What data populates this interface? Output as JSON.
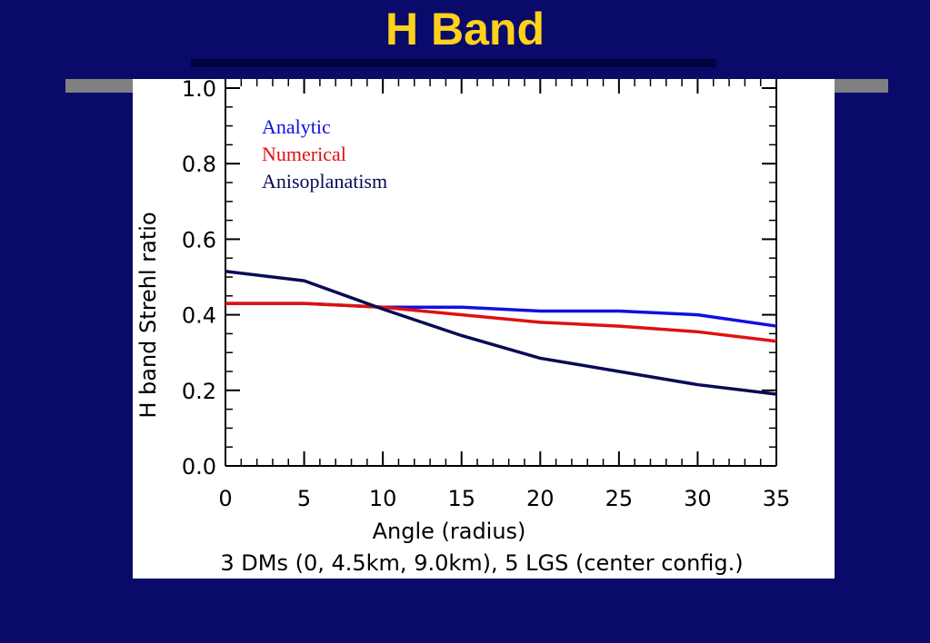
{
  "slide": {
    "title": "H Band"
  },
  "chart_data": {
    "type": "line",
    "xlabel": "Angle (radius)",
    "ylabel": "H band Strehl ratio",
    "subtitle": "3 DMs (0, 4.5km, 9.0km), 5 LGS (center config.)",
    "xlim": [
      0,
      35
    ],
    "ylim": [
      0,
      1.0
    ],
    "xticks": [
      0,
      5,
      10,
      15,
      20,
      25,
      30,
      35
    ],
    "xtick_labels": [
      "0",
      "5",
      "10",
      "15",
      "20",
      "25",
      "30",
      "35"
    ],
    "yticks": [
      0.0,
      0.2,
      0.4,
      0.6,
      0.8,
      1.0
    ],
    "ytick_labels": [
      "0.0",
      "0.2",
      "0.4",
      "0.6",
      "0.8",
      "1.0"
    ],
    "grid": false,
    "legend_position": "top-left",
    "x": [
      0,
      5,
      10,
      15,
      20,
      25,
      30,
      35
    ],
    "series": [
      {
        "name": "Analytic",
        "color": "#1010e0",
        "values": [
          0.43,
          0.43,
          0.42,
          0.42,
          0.41,
          0.41,
          0.4,
          0.37
        ]
      },
      {
        "name": "Numerical",
        "color": "#e01010",
        "values": [
          0.43,
          0.43,
          0.42,
          0.4,
          0.38,
          0.37,
          0.355,
          0.33
        ]
      },
      {
        "name": "Anisoplanatism",
        "color": "#0a0a55",
        "values": [
          0.515,
          0.49,
          0.415,
          0.345,
          0.285,
          0.25,
          0.215,
          0.19
        ]
      }
    ]
  }
}
